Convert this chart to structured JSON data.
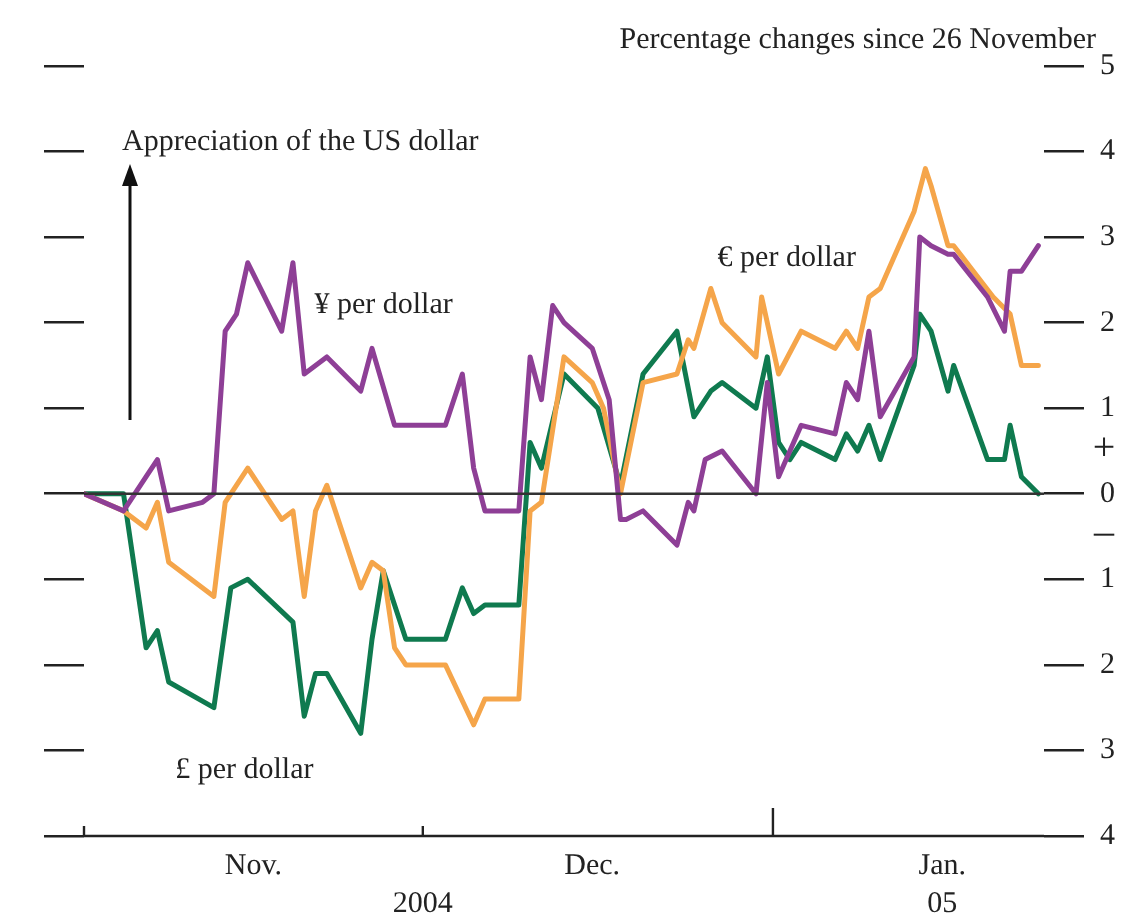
{
  "chart_data": {
    "type": "line",
    "title": "Percentage changes since 26 November",
    "annotations": [
      "Appreciation of the US dollar",
      "+",
      "–",
      "2004",
      "05"
    ],
    "xlim": [
      "2004-11-01",
      "2005-01-25"
    ],
    "xticks": [
      {
        "value": "2004-11-01",
        "label": null
      },
      {
        "value": "2004-11-16",
        "label": "Nov."
      },
      {
        "value": "2004-12-01",
        "label": null
      },
      {
        "value": "2004-12-16",
        "label": "Dec."
      },
      {
        "value": "2005-01-01",
        "label": null
      },
      {
        "value": "2005-01-16",
        "label": "Jan."
      }
    ],
    "ylim": [
      -4,
      5
    ],
    "yticks": [
      {
        "value": -4,
        "label": "4"
      },
      {
        "value": -3,
        "label": "3"
      },
      {
        "value": -2,
        "label": "2"
      },
      {
        "value": -1,
        "label": "1"
      },
      0,
      1,
      2,
      3,
      4,
      5
    ],
    "grid": false,
    "legend": false,
    "marker": "none",
    "line_style": "solid",
    "ref_lines": [
      {
        "axis": "y",
        "value": 0,
        "color": "#333333"
      }
    ],
    "series": [
      {
        "name": "¥ per dollar",
        "color": "#8e3f96",
        "x": [
          "2004-11-01",
          "2004-11-04T12:00",
          "2004-11-06T12:00",
          "2004-11-07T12:00",
          "2004-11-08T12:00",
          "2004-11-11T12:00",
          "2004-11-12T12:00",
          "2004-11-13T12:00",
          "2004-11-14T12:00",
          "2004-11-15T12:00",
          "2004-11-18T12:00",
          "2004-11-19T12:00",
          "2004-11-20T12:00",
          "2004-11-22T12:00",
          "2004-11-25T12:00",
          "2004-11-26T12:00",
          "2004-11-28T12:00",
          "2004-11-29T12:00",
          "2004-12-03",
          "2004-12-04T12:00",
          "2004-12-05T12:00",
          "2004-12-06T12:00",
          "2004-12-09T12:00",
          "2004-12-10T12:00",
          "2004-12-11T12:00",
          "2004-12-12T12:00",
          "2004-12-13T12:00",
          "2004-12-16",
          "2004-12-17T12:00",
          "2004-12-18T12:00",
          "2004-12-19",
          "2004-12-20T12:00",
          "2004-12-23T12:00",
          "2004-12-24T12:00",
          "2004-12-25",
          "2004-12-26",
          "2004-12-27T12:00",
          "2004-12-30T12:00",
          "2004-12-31T12:00",
          "2005-01-01T12:00",
          "2005-01-03T12:00",
          "2005-01-06T12:00",
          "2005-01-07T12:00",
          "2005-01-08T12:00",
          "2005-01-09T12:00",
          "2005-01-10T12:00",
          "2005-01-13T12:00",
          "2005-01-14",
          "2005-01-15",
          "2005-01-16T12:00",
          "2005-01-17",
          "2005-01-20",
          "2005-01-21T12:00",
          "2005-01-22",
          "2005-01-23",
          "2005-01-24T12:00"
        ],
        "values": [
          0,
          -0.2,
          0.2,
          0.4,
          -0.2,
          -0.1,
          0,
          1.9,
          2.1,
          2.7,
          1.9,
          2.7,
          1.4,
          1.6,
          1.2,
          1.7,
          0.8,
          0.8,
          0.8,
          1.4,
          0.3,
          -0.2,
          -0.2,
          1.6,
          1.1,
          2.2,
          2.0,
          1.7,
          1.1,
          -0.3,
          -0.3,
          -0.2,
          -0.6,
          -0.1,
          -0.2,
          0.4,
          0.5,
          0,
          1.3,
          0.2,
          0.8,
          0.7,
          1.3,
          1.1,
          1.9,
          0.9,
          1.6,
          3.0,
          2.9,
          2.8,
          2.8,
          2.3,
          1.9,
          2.6,
          2.6,
          2.9
        ]
      },
      {
        "name": "€ per dollar",
        "color": "#f5a54a",
        "x": [
          "2004-11-01",
          "2004-11-04T12:00",
          "2004-11-06T12:00",
          "2004-11-07T12:00",
          "2004-11-08T12:00",
          "2004-11-12T12:00",
          "2004-11-13T12:00",
          "2004-11-14",
          "2004-11-15T12:00",
          "2004-11-18T12:00",
          "2004-11-19T12:00",
          "2004-11-20T12:00",
          "2004-11-21T12:00",
          "2004-11-22T12:00",
          "2004-11-25T12:00",
          "2004-11-26T12:00",
          "2004-11-27T12:00",
          "2004-11-28T12:00",
          "2004-11-29T12:00",
          "2004-12-03",
          "2004-12-05T12:00",
          "2004-12-06T12:00",
          "2004-12-09T12:00",
          "2004-12-10T12:00",
          "2004-12-11T12:00",
          "2004-12-13T12:00",
          "2004-12-16",
          "2004-12-17",
          "2004-12-18T12:00",
          "2004-12-20T12:00",
          "2004-12-23T12:00",
          "2004-12-24T12:00",
          "2004-12-25",
          "2004-12-26T12:00",
          "2004-12-27T12:00",
          "2004-12-30T12:00",
          "2004-12-31",
          "2005-01-01T12:00",
          "2005-01-03T12:00",
          "2005-01-06T12:00",
          "2005-01-07T12:00",
          "2005-01-08T12:00",
          "2005-01-09T12:00",
          "2005-01-10T12:00",
          "2005-01-13T12:00",
          "2005-01-14T12:00",
          "2005-01-15",
          "2005-01-16T12:00",
          "2005-01-17",
          "2005-01-20T12:00",
          "2005-01-22",
          "2005-01-23",
          "2005-01-24T12:00"
        ],
        "values": [
          0,
          -0.2,
          -0.4,
          -0.1,
          -0.8,
          -1.2,
          -0.1,
          0,
          0.3,
          -0.3,
          -0.2,
          -1.2,
          -0.2,
          0.1,
          -1.1,
          -0.8,
          -0.9,
          -1.8,
          -2.0,
          -2.0,
          -2.7,
          -2.4,
          -2.4,
          -0.2,
          -0.1,
          1.6,
          1.3,
          1.0,
          0,
          1.3,
          1.4,
          1.8,
          1.7,
          2.4,
          2.0,
          1.6,
          2.3,
          1.4,
          1.9,
          1.7,
          1.9,
          1.7,
          2.3,
          2.4,
          3.3,
          3.8,
          3.6,
          2.9,
          2.9,
          2.3,
          2.1,
          1.5,
          1.5
        ]
      },
      {
        "name": "£ per dollar",
        "color": "#0f7a4f",
        "x": [
          "2004-11-01",
          "2004-11-04T12:00",
          "2004-11-06T12:00",
          "2004-11-07T12:00",
          "2004-11-08T12:00",
          "2004-11-12T12:00",
          "2004-11-14",
          "2004-11-15T12:00",
          "2004-11-19T12:00",
          "2004-11-20T12:00",
          "2004-11-21T12:00",
          "2004-11-22T12:00",
          "2004-11-25T12:00",
          "2004-11-26T12:00",
          "2004-11-27T12:00",
          "2004-11-29T12:00",
          "2004-12-03",
          "2004-12-04T12:00",
          "2004-12-05T12:00",
          "2004-12-06T12:00",
          "2004-12-09T12:00",
          "2004-12-10T12:00",
          "2004-12-11T12:00",
          "2004-12-13T12:00",
          "2004-12-16T12:00",
          "2004-12-18T12:00",
          "2004-12-20T12:00",
          "2004-12-23T12:00",
          "2004-12-25",
          "2004-12-26T12:00",
          "2004-12-27T12:00",
          "2004-12-30T12:00",
          "2004-12-31T12:00",
          "2005-01-01T12:00",
          "2005-01-02T12:00",
          "2005-01-03T12:00",
          "2005-01-06T12:00",
          "2005-01-07T12:00",
          "2005-01-08T12:00",
          "2005-01-09T12:00",
          "2005-01-10T12:00",
          "2005-01-13T12:00",
          "2005-01-14",
          "2005-01-15",
          "2005-01-16T12:00",
          "2005-01-17",
          "2005-01-20",
          "2005-01-21T12:00",
          "2005-01-22",
          "2005-01-23",
          "2005-01-24T12:00"
        ],
        "values": [
          0,
          0,
          -1.8,
          -1.6,
          -2.2,
          -2.5,
          -1.1,
          -1.0,
          -1.5,
          -2.6,
          -2.1,
          -2.1,
          -2.8,
          -1.7,
          -0.9,
          -1.7,
          -1.7,
          -1.1,
          -1.4,
          -1.3,
          -1.3,
          0.6,
          0.3,
          1.4,
          1.0,
          0.1,
          1.4,
          1.9,
          0.9,
          1.2,
          1.3,
          1.0,
          1.6,
          0.6,
          0.4,
          0.6,
          0.4,
          0.7,
          0.5,
          0.8,
          0.4,
          1.5,
          2.1,
          1.9,
          1.2,
          1.5,
          0.4,
          0.4,
          0.8,
          0.2,
          0
        ]
      }
    ]
  }
}
